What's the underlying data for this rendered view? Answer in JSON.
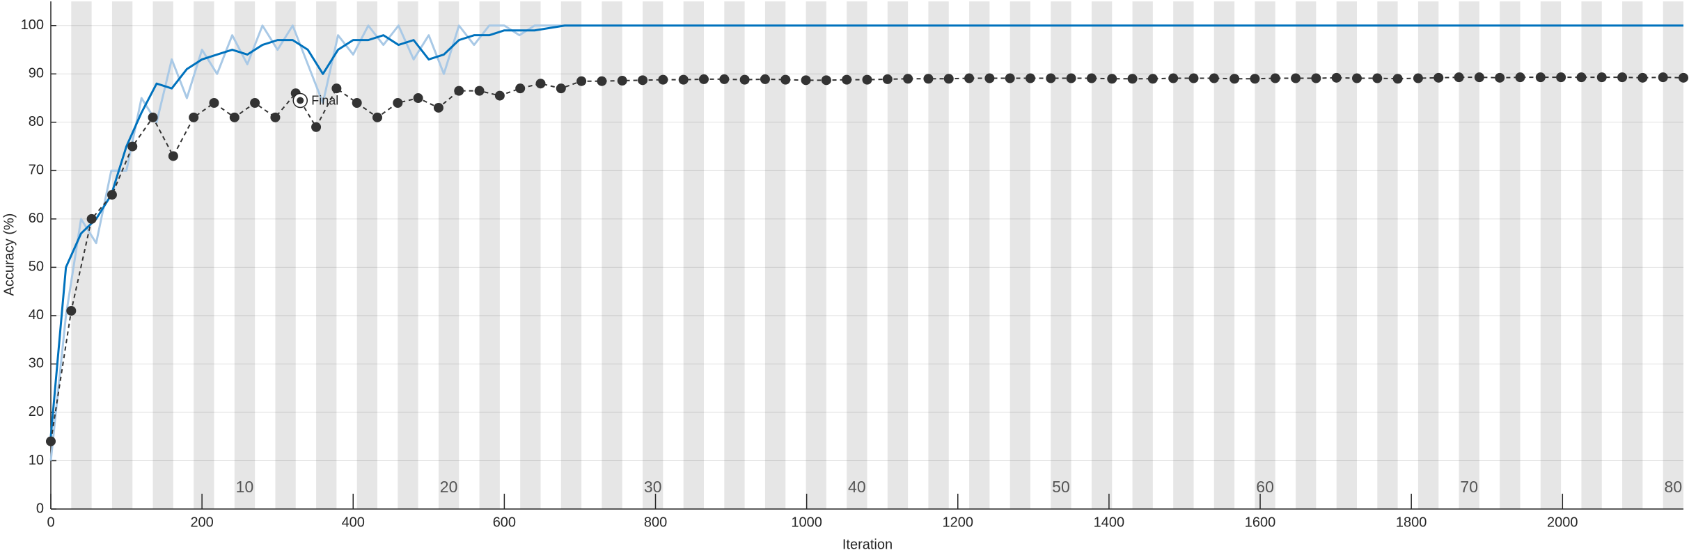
{
  "chart_data": {
    "type": "line",
    "xlabel": "Iteration",
    "ylabel": "Accuracy (%)",
    "xlim": [
      0,
      2160
    ],
    "ylim": [
      0,
      105
    ],
    "xticks": [
      0,
      200,
      400,
      600,
      800,
      1000,
      1200,
      1400,
      1600,
      1800,
      2000
    ],
    "yticks": [
      0,
      10,
      20,
      30,
      40,
      50,
      60,
      70,
      80,
      90,
      100
    ],
    "grid": true,
    "epoch_labels": [
      10,
      20,
      30,
      40,
      50,
      60,
      70,
      80
    ],
    "band_color": "#e6e6e6",
    "series": [
      {
        "color": "#a9c9e6",
        "style": "solid",
        "x": [
          0,
          20,
          40,
          60,
          80,
          100,
          120,
          140,
          160,
          180,
          200,
          220,
          240,
          260,
          280,
          300,
          320,
          340,
          360,
          380,
          400,
          420,
          440,
          460,
          480,
          500,
          520,
          540,
          560,
          580,
          600,
          620,
          640,
          660,
          680,
          700
        ],
        "values": [
          10,
          40,
          60,
          55,
          70,
          70,
          85,
          80,
          93,
          85,
          95,
          90,
          98,
          92,
          100,
          95,
          100,
          92,
          84,
          98,
          94,
          100,
          96,
          100,
          93,
          98,
          90,
          100,
          96,
          100,
          100,
          98,
          100,
          100,
          100,
          100
        ]
      },
      {
        "color": "#0072bd",
        "style": "solid",
        "x": [
          0,
          20,
          40,
          60,
          80,
          100,
          120,
          140,
          160,
          180,
          200,
          220,
          240,
          260,
          280,
          300,
          320,
          340,
          360,
          380,
          400,
          420,
          440,
          460,
          480,
          500,
          520,
          540,
          560,
          580,
          600,
          620,
          640,
          660,
          680,
          700,
          2160
        ],
        "values": [
          15,
          50,
          57,
          60,
          65,
          75,
          82,
          88,
          87,
          91,
          93,
          94,
          95,
          94,
          96,
          97,
          97,
          95,
          90,
          95,
          97,
          97,
          98,
          96,
          97,
          93,
          94,
          97,
          98,
          98,
          99,
          99,
          99,
          99.5,
          100,
          100,
          100
        ]
      },
      {
        "color": "#333333",
        "style": "dashed",
        "marker": "circle",
        "x": [
          0,
          27,
          54,
          81,
          108,
          135,
          162,
          189,
          216,
          243,
          270,
          297,
          324,
          351,
          378,
          405,
          432,
          459,
          486,
          513,
          540,
          567,
          594,
          621,
          648,
          675,
          702,
          729,
          756,
          783,
          810,
          837,
          864,
          891,
          918,
          945,
          972,
          999,
          1026,
          1053,
          1080,
          1107,
          1134,
          1161,
          1188,
          1215,
          1242,
          1269,
          1296,
          1323,
          1350,
          1377,
          1404,
          1431,
          1458,
          1485,
          1512,
          1539,
          1566,
          1593,
          1620,
          1647,
          1674,
          1701,
          1728,
          1755,
          1782,
          1809,
          1836,
          1863,
          1890,
          1917,
          1944,
          1971,
          1998,
          2025,
          2052,
          2079,
          2106,
          2133,
          2160
        ],
        "values": [
          14,
          41,
          60,
          65,
          75,
          81,
          73,
          81,
          84,
          81,
          84,
          81,
          86,
          79,
          87,
          84,
          81,
          84,
          85,
          83,
          86.5,
          86.5,
          85.5,
          87,
          88,
          87,
          88.5,
          88.5,
          88.6,
          88.7,
          88.8,
          88.8,
          88.9,
          88.9,
          88.8,
          88.9,
          88.8,
          88.7,
          88.7,
          88.8,
          88.8,
          88.9,
          89.0,
          89.0,
          89.0,
          89.1,
          89.1,
          89.1,
          89.1,
          89.1,
          89.1,
          89.1,
          89.0,
          89.0,
          89.0,
          89.1,
          89.1,
          89.1,
          89.0,
          89.0,
          89.1,
          89.1,
          89.1,
          89.2,
          89.1,
          89.1,
          89.0,
          89.1,
          89.2,
          89.3,
          89.3,
          89.2,
          89.3,
          89.3,
          89.3,
          89.3,
          89.3,
          89.3,
          89.2,
          89.3,
          89.2
        ]
      }
    ],
    "annotations": [
      {
        "text": "Final",
        "x": 330,
        "y": 84.5
      }
    ]
  }
}
